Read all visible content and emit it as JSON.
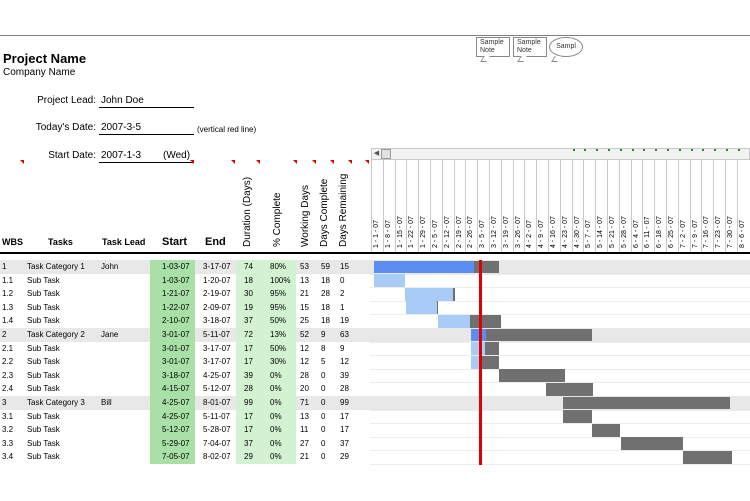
{
  "notes": [
    "Sample Note",
    "Sample Note",
    "Sampl"
  ],
  "project": {
    "name": "Project Name",
    "company": "Company Name"
  },
  "fields": {
    "lead_label": "Project Lead:",
    "lead_value": "John Doe",
    "today_label": "Today's Date:",
    "today_value": "2007-3-5",
    "today_hint": "(vertical red line)",
    "start_label": "Start Date:",
    "start_value": "2007-1-3",
    "start_day": "(Wed)"
  },
  "columns": {
    "wbs": "WBS",
    "tasks": "Tasks",
    "lead": "Task Lead",
    "start": "Start",
    "end": "End",
    "duration": "Duration (Days)",
    "pct": "% Complete",
    "working": "Working Days",
    "days_complete": "Days Complete",
    "days_remaining": "Days Remaining"
  },
  "week_dates": [
    "1 - 1 - 07",
    "1 - 8 - 07",
    "1 - 15 - 07",
    "1 - 22 - 07",
    "1 - 29 - 07",
    "2 - 5 - 07",
    "2 - 12 - 07",
    "2 - 19 - 07",
    "2 - 26 - 07",
    "3 - 5 - 07",
    "3 - 12 - 07",
    "3 - 19 - 07",
    "3 - 26 - 07",
    "4 - 2 - 07",
    "4 - 9 - 07",
    "4 - 16 - 07",
    "4 - 23 - 07",
    "4 - 30 - 07",
    "5 - 7 - 07",
    "5 - 14 - 07",
    "5 - 21 - 07",
    "5 - 28 - 07",
    "6 - 4 - 07",
    "6 - 11 - 07",
    "6 - 18 - 07",
    "6 - 25 - 07",
    "7 - 2 - 07",
    "7 - 9 - 07",
    "7 - 16 - 07",
    "7 - 23 - 07",
    "7 - 30 - 07",
    "8 - 6 - 07"
  ],
  "rows": [
    {
      "wbs": "1",
      "task": "Task Category 1",
      "lead": "John",
      "start": "1-03-07",
      "end": "3-17-07",
      "dur": "74",
      "pct": "80%",
      "work": "53",
      "done": "59",
      "rem": "15",
      "cat": true
    },
    {
      "wbs": "1.1",
      "task": "Sub Task",
      "lead": "",
      "start": "1-03-07",
      "end": "1-20-07",
      "dur": "18",
      "pct": "100%",
      "work": "13",
      "done": "18",
      "rem": "0",
      "cat": false
    },
    {
      "wbs": "1.2",
      "task": "Sub Task",
      "lead": "",
      "start": "1-21-07",
      "end": "2-19-07",
      "dur": "30",
      "pct": "95%",
      "work": "21",
      "done": "28",
      "rem": "2",
      "cat": false
    },
    {
      "wbs": "1.3",
      "task": "Sub Task",
      "lead": "",
      "start": "1-22-07",
      "end": "2-09-07",
      "dur": "19",
      "pct": "95%",
      "work": "15",
      "done": "18",
      "rem": "1",
      "cat": false
    },
    {
      "wbs": "1.4",
      "task": "Sub Task",
      "lead": "",
      "start": "2-10-07",
      "end": "3-18-07",
      "dur": "37",
      "pct": "50%",
      "work": "25",
      "done": "18",
      "rem": "19",
      "cat": false
    },
    {
      "wbs": "2",
      "task": "Task Category 2",
      "lead": "Jane",
      "start": "3-01-07",
      "end": "5-11-07",
      "dur": "72",
      "pct": "13%",
      "work": "52",
      "done": "9",
      "rem": "63",
      "cat": true
    },
    {
      "wbs": "2.1",
      "task": "Sub Task",
      "lead": "",
      "start": "3-01-07",
      "end": "3-17-07",
      "dur": "17",
      "pct": "50%",
      "work": "12",
      "done": "8",
      "rem": "9",
      "cat": false
    },
    {
      "wbs": "2.2",
      "task": "Sub Task",
      "lead": "",
      "start": "3-01-07",
      "end": "3-17-07",
      "dur": "17",
      "pct": "30%",
      "work": "12",
      "done": "5",
      "rem": "12",
      "cat": false
    },
    {
      "wbs": "2.3",
      "task": "Sub Task",
      "lead": "",
      "start": "3-18-07",
      "end": "4-25-07",
      "dur": "39",
      "pct": "0%",
      "work": "28",
      "done": "0",
      "rem": "39",
      "cat": false
    },
    {
      "wbs": "2.4",
      "task": "Sub Task",
      "lead": "",
      "start": "4-15-07",
      "end": "5-12-07",
      "dur": "28",
      "pct": "0%",
      "work": "20",
      "done": "0",
      "rem": "28",
      "cat": false
    },
    {
      "wbs": "3",
      "task": "Task Category 3",
      "lead": "Bill",
      "start": "4-25-07",
      "end": "8-01-07",
      "dur": "99",
      "pct": "0%",
      "work": "71",
      "done": "0",
      "rem": "99",
      "cat": true
    },
    {
      "wbs": "3.1",
      "task": "Sub Task",
      "lead": "",
      "start": "4-25-07",
      "end": "5-11-07",
      "dur": "17",
      "pct": "0%",
      "work": "13",
      "done": "0",
      "rem": "17",
      "cat": false
    },
    {
      "wbs": "3.2",
      "task": "Sub Task",
      "lead": "",
      "start": "5-12-07",
      "end": "5-28-07",
      "dur": "17",
      "pct": "0%",
      "work": "11",
      "done": "0",
      "rem": "17",
      "cat": false
    },
    {
      "wbs": "3.3",
      "task": "Sub Task",
      "lead": "",
      "start": "5-29-07",
      "end": "7-04-07",
      "dur": "37",
      "pct": "0%",
      "work": "27",
      "done": "0",
      "rem": "37",
      "cat": false
    },
    {
      "wbs": "3.4",
      "task": "Sub Task",
      "lead": "",
      "start": "7-05-07",
      "end": "8-02-07",
      "dur": "29",
      "pct": "0%",
      "work": "21",
      "done": "0",
      "rem": "29",
      "cat": false
    }
  ],
  "colors": {
    "bar_done_cat": "#5b8ef0",
    "bar_done_sub": "#a8ccf5",
    "bar_remaining": "#707070",
    "today_line": "#e00000",
    "start_cell": "#a8e0a8",
    "dur_cell": "#d2f2d2"
  }
}
